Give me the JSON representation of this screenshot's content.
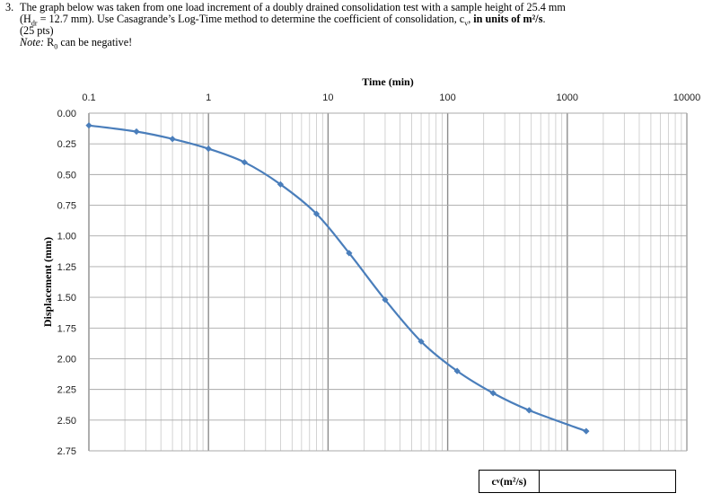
{
  "question": {
    "number": "3.",
    "line1": "The graph below was taken from one load increment of a doubly drained consolidation test with a sample height of 25.4 mm",
    "line2_pre": "(H",
    "line2_sub": "dr",
    "line2_mid": " = 12.7 mm).  Use Casagrande’s Log-Time method to determine the coefficient of consolidation, c",
    "line2_sub2": "v",
    "line2_post": ", ",
    "line2_bold": "in units of m²/s",
    "line2_end": ".",
    "points": "(25 pts)",
    "note_label": "Note:",
    "note_text_pre": " R",
    "note_sub": "0",
    "note_text_post": " can be negative!"
  },
  "answer": {
    "label_pre": "c",
    "label_sub": "v",
    "label_post": " (m²/s)",
    "value": ""
  },
  "chart_data": {
    "type": "line",
    "title": "",
    "xlabel": "Time (min)",
    "ylabel": "Displacement (mm)",
    "xscale": "log",
    "xlim": [
      0.1,
      10000
    ],
    "ylim": [
      0,
      2.75
    ],
    "y_inverted": true,
    "x_tick_labels": [
      "0.1",
      "1",
      "10",
      "100",
      "1000",
      "10000"
    ],
    "y_tick_labels": [
      "0.00",
      "0.25",
      "0.50",
      "0.75",
      "1.00",
      "1.25",
      "1.50",
      "1.75",
      "2.00",
      "2.25",
      "2.50",
      "2.75"
    ],
    "grid": true,
    "x_axis_position": "top",
    "series": [
      {
        "color": "#4a7ebb",
        "x": [
          0.1,
          0.25,
          0.5,
          1,
          2,
          4,
          8,
          15,
          30,
          60,
          120,
          240,
          480,
          1440
        ],
        "y": [
          0.1,
          0.15,
          0.21,
          0.29,
          0.4,
          0.58,
          0.82,
          1.14,
          1.52,
          1.86,
          2.1,
          2.28,
          2.42,
          2.59
        ]
      }
    ]
  }
}
